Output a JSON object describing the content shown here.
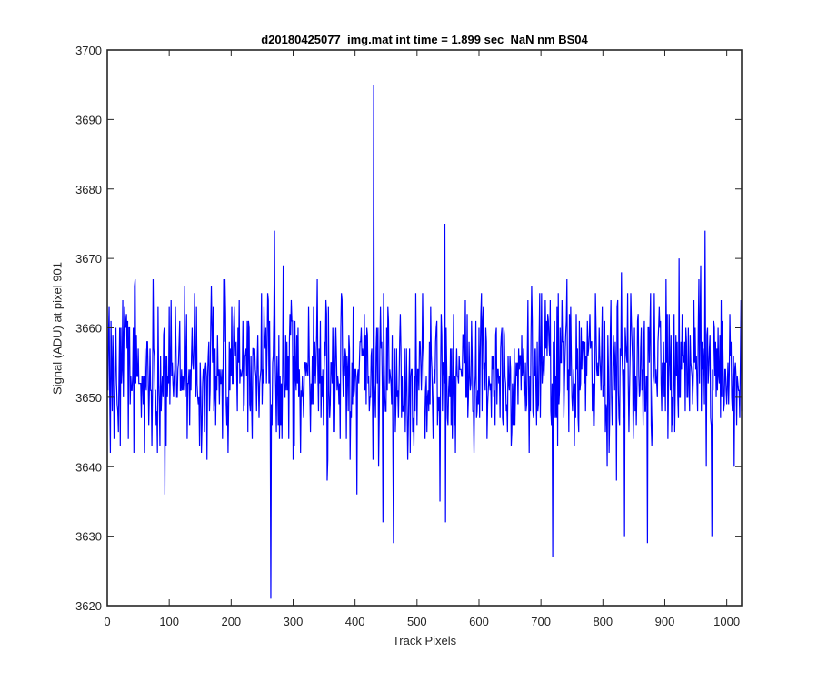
{
  "chart_data": {
    "type": "line",
    "title": "d20180425077_img.mat int time = 1.899 sec  NaN nm BS04",
    "xlabel": "Track Pixels",
    "ylabel": "Signal (ADU) at pixel 901",
    "xlim": [
      0,
      1024
    ],
    "ylim": [
      3620,
      3700
    ],
    "x_ticks": [
      0,
      100,
      200,
      300,
      400,
      500,
      600,
      700,
      800,
      900,
      1000
    ],
    "y_ticks": [
      3620,
      3630,
      3640,
      3650,
      3660,
      3670,
      3680,
      3690,
      3700
    ],
    "grid": false,
    "line_color": "#0000ff",
    "series": [
      {
        "x_start": 1,
        "x_step": 1,
        "count": 1024,
        "mean": 3654,
        "spread_typical": [
          3642,
          3666
        ],
        "approx_min": 3621,
        "approx_max": 3695,
        "notable_points": [
          {
            "x": 264,
            "y": 3621
          },
          {
            "x": 270,
            "y": 3674
          },
          {
            "x": 403,
            "y": 3636
          },
          {
            "x": 430,
            "y": 3695
          },
          {
            "x": 445,
            "y": 3632
          },
          {
            "x": 462,
            "y": 3629
          },
          {
            "x": 545,
            "y": 3675
          },
          {
            "x": 546,
            "y": 3632
          },
          {
            "x": 719,
            "y": 3627
          },
          {
            "x": 835,
            "y": 3630
          },
          {
            "x": 872,
            "y": 3629
          },
          {
            "x": 965,
            "y": 3674
          },
          {
            "x": 976,
            "y": 3630
          }
        ]
      }
    ]
  }
}
